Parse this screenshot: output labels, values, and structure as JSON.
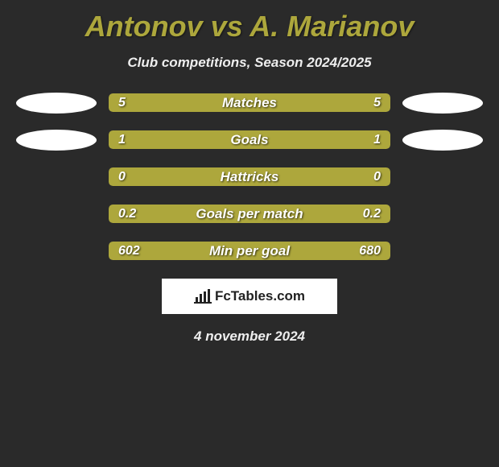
{
  "title": "Antonov vs A. Marianov",
  "subtitle": "Club competitions, Season 2024/2025",
  "date": "4 november 2024",
  "attribution": "FcTables.com",
  "colors": {
    "background": "#2a2a2a",
    "accent": "#ada73c",
    "bar_left": "#ada73c",
    "bar_right": "#ada73c",
    "ellipse": "#ffffff",
    "text_light": "#eeeeee"
  },
  "stats": [
    {
      "label": "Matches",
      "left_value": "5",
      "right_value": "5",
      "left_pct": 50,
      "right_pct": 50,
      "show_ellipse": true
    },
    {
      "label": "Goals",
      "left_value": "1",
      "right_value": "1",
      "left_pct": 50,
      "right_pct": 50,
      "show_ellipse": true
    },
    {
      "label": "Hattricks",
      "left_value": "0",
      "right_value": "0",
      "left_pct": 50,
      "right_pct": 50,
      "show_ellipse": false
    },
    {
      "label": "Goals per match",
      "left_value": "0.2",
      "right_value": "0.2",
      "left_pct": 50,
      "right_pct": 50,
      "show_ellipse": false
    },
    {
      "label": "Min per goal",
      "left_value": "602",
      "right_value": "680",
      "left_pct": 47,
      "right_pct": 53,
      "show_ellipse": false
    }
  ]
}
